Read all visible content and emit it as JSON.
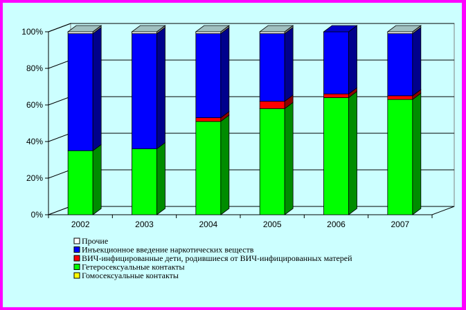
{
  "chart_data": {
    "type": "bar",
    "stacked": true,
    "percent": true,
    "categories": [
      "2002",
      "2003",
      "2004",
      "2005",
      "2006",
      "2007"
    ],
    "ylim": [
      0,
      100
    ],
    "y_ticks": [
      "0%",
      "20%",
      "40%",
      "60%",
      "80%",
      "100%"
    ],
    "grid": true,
    "legend_position": "bottom-left",
    "series": [
      {
        "name": "Гомосексуальные контакты",
        "color": "#ffff00",
        "values": [
          0,
          0,
          0,
          0,
          0,
          0
        ]
      },
      {
        "name": "Гетеросексуальные контакты",
        "color": "#00ff00",
        "values": [
          35,
          36,
          51,
          58,
          64,
          63
        ]
      },
      {
        "name": "ВИЧ-инфицированные дети, родившиеся от ВИЧ-инфицированных матерей",
        "color": "#ff0000",
        "values": [
          0,
          0,
          2,
          4,
          2,
          2
        ]
      },
      {
        "name": "Инъекционное введение  наркотических веществ",
        "color": "#0000ff",
        "values": [
          64,
          63,
          46,
          37,
          34,
          34
        ]
      },
      {
        "name": "Прочие",
        "color": "#ffffff",
        "values": [
          1,
          1,
          1,
          1,
          0,
          1
        ]
      }
    ]
  },
  "legend": {
    "items": [
      {
        "label": "Прочие",
        "color": "#ffffff"
      },
      {
        "label": "Инъекционное введение  наркотических веществ",
        "color": "#0000ff"
      },
      {
        "label": "ВИЧ-инфицированные дети, родившиеся от ВИЧ-инфицированных матерей",
        "color": "#ff0000"
      },
      {
        "label": "Гетеросексуальные контакты",
        "color": "#00ff00"
      },
      {
        "label": "Гомосексуальные контакты",
        "color": "#ffff00"
      }
    ]
  }
}
